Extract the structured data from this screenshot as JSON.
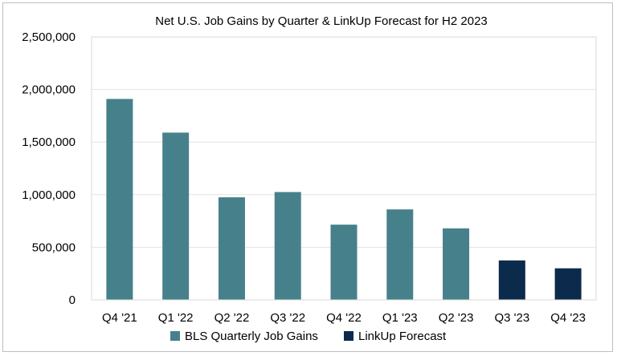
{
  "chart_data": {
    "type": "bar",
    "title": "Net U.S. Job Gains by Quarter & LinkUp Forecast for H2 2023",
    "xlabel": "",
    "ylabel": "",
    "categories": [
      "Q4 '21",
      "Q1 '22",
      "Q2 '22",
      "Q3 '22",
      "Q4 '22",
      "Q1 '23",
      "Q2 '23",
      "Q3 '23",
      "Q4 '23"
    ],
    "series": [
      {
        "name": "BLS Quarterly Job Gains",
        "color": "#46818b",
        "values": [
          1910000,
          1590000,
          975000,
          1025000,
          715000,
          860000,
          680000,
          null,
          null
        ]
      },
      {
        "name": "LinkUp Forecast",
        "color": "#0c2a4b",
        "values": [
          null,
          null,
          null,
          null,
          null,
          null,
          null,
          375000,
          300000
        ]
      }
    ],
    "ylim": [
      0,
      2500000
    ],
    "yticks": [
      0,
      500000,
      1000000,
      1500000,
      2000000,
      2500000
    ],
    "ytick_labels": [
      "0",
      "500,000",
      "1,000,000",
      "1,500,000",
      "2,000,000",
      "2,500,000"
    ],
    "grid": true,
    "legend_position": "bottom"
  }
}
